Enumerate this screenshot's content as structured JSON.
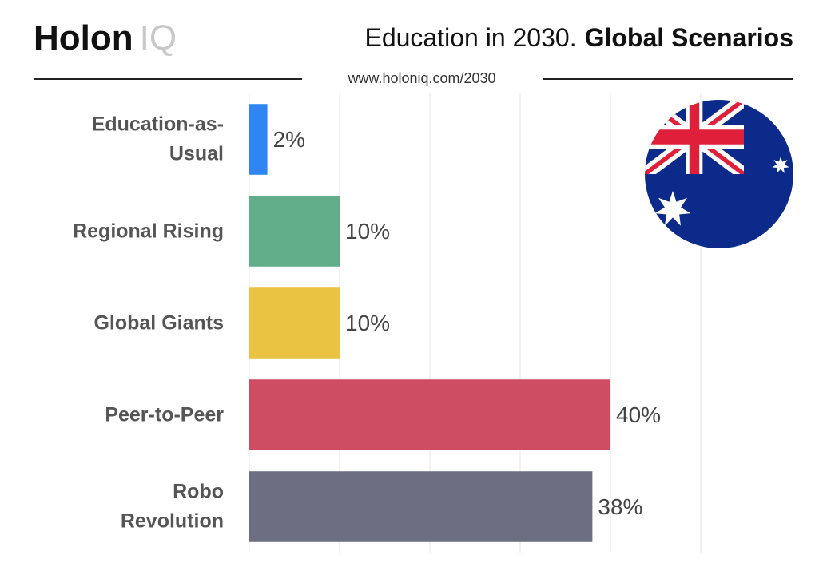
{
  "header": {
    "logo": "Holon",
    "logo_suffix": "IQ",
    "title": "Education in 2030.",
    "title_emphasis": "Global Scenarios",
    "url": "www.holoniq.com/2030"
  },
  "chart_data": {
    "type": "hbar",
    "categories": [
      "Education-as-Usual",
      "Regional Rising",
      "Global Giants",
      "Peer-to-Peer",
      "Robo Revolution"
    ],
    "values": [
      2,
      10,
      10,
      40,
      38
    ],
    "value_labels": [
      "2%",
      "10%",
      "10%",
      "40%",
      "38%"
    ],
    "colors": [
      "#2f86f0",
      "#62ae8a",
      "#ebc342",
      "#ce4d63",
      "#6c6f82"
    ],
    "xlim": [
      0,
      50
    ],
    "xticks": [
      0,
      10,
      20,
      30,
      40,
      50
    ],
    "grid": true
  }
}
